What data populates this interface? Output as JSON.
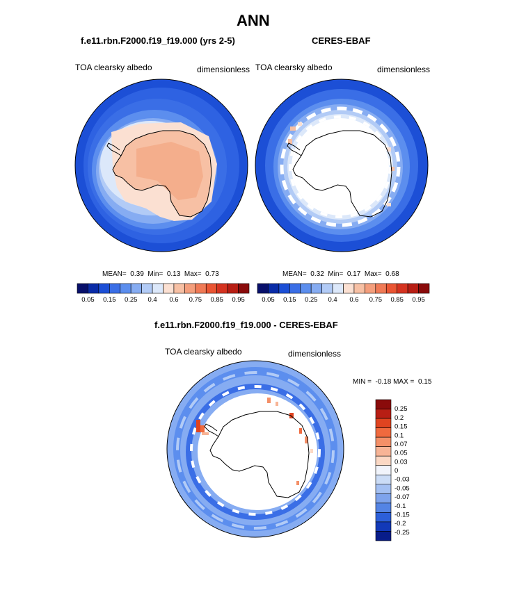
{
  "figure": {
    "title": "ANN",
    "panels": [
      {
        "id": "model",
        "case_title": "f.e11.rbn.F2000.f19_f19.000 (yrs 2-5)",
        "variable_label": "TOA clearsky albedo",
        "units": "dimensionless",
        "stats": {
          "mean_label": "MEAN=",
          "mean": "0.39",
          "min_label": "Min=",
          "min": "0.13",
          "max_label": "Max=",
          "max": "0.73"
        }
      },
      {
        "id": "obs",
        "case_title": "CERES-EBAF",
        "variable_label": "TOA clearsky albedo",
        "units": "dimensionless",
        "stats": {
          "mean_label": "MEAN=",
          "mean": "0.32",
          "min_label": "Min=",
          "min": "0.17",
          "max_label": "Max=",
          "max": "0.68"
        }
      },
      {
        "id": "diff",
        "case_title": "f.e11.rbn.F2000.f19_f19.000 - CERES-EBAF",
        "variable_label": "TOA clearsky albedo",
        "units": "dimensionless",
        "stats": {
          "min_label": "MIN =",
          "min": "-0.18",
          "max_label": "MAX =",
          "max": "0.15"
        }
      }
    ],
    "colorbar_horizontal": {
      "colors": [
        "#08106b",
        "#0a2ca8",
        "#1c4fd6",
        "#3a6ee6",
        "#5c8eee",
        "#86acf2",
        "#b2cbf6",
        "#dce8fa",
        "#fbe0d2",
        "#f7c0a4",
        "#f49e7c",
        "#f07a56",
        "#ea5533",
        "#d53320",
        "#b81e14",
        "#8a0b0b"
      ],
      "tick_labels": [
        "0.05",
        "0.15",
        "0.25",
        "0.4",
        "0.6",
        "0.75",
        "0.85",
        "0.95"
      ]
    },
    "colorbar_vertical": {
      "colors": [
        "#8a0b0b",
        "#b81e14",
        "#e04420",
        "#f06a3e",
        "#f49068",
        "#f7b496",
        "#fbd8c4",
        "#f1f4fb",
        "#cbdcf6",
        "#a4c0f2",
        "#7ea3ec",
        "#5484e4",
        "#2c5fd9",
        "#1239b8",
        "#081c8a"
      ],
      "tick_labels": [
        "0.25",
        "0.2",
        "0.15",
        "0.1",
        "0.07",
        "0.05",
        "0.03",
        "0",
        "-0.03",
        "-0.05",
        "-0.07",
        "-0.1",
        "-0.15",
        "-0.2",
        "-0.25"
      ]
    }
  }
}
